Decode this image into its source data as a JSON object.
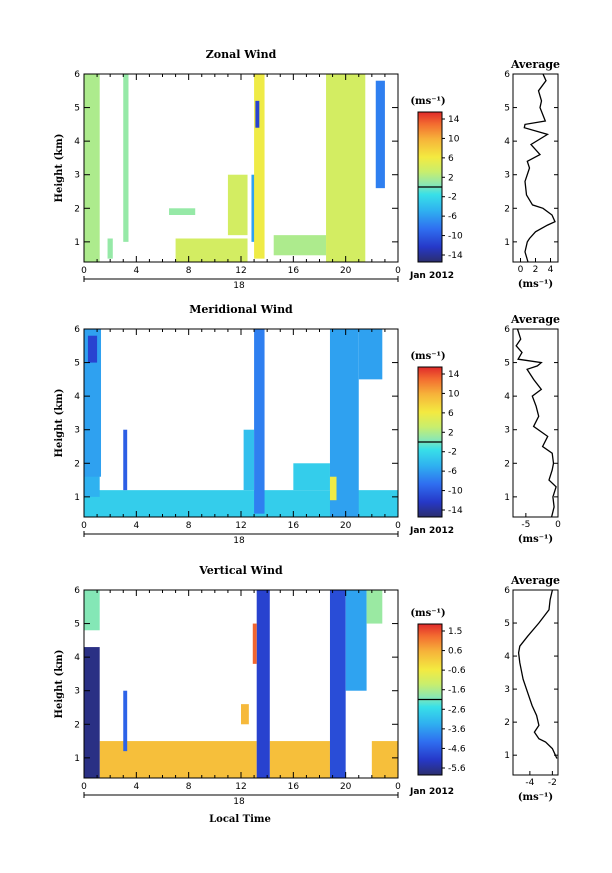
{
  "figure": {
    "time_label": "Local Time",
    "date_label": "Jan 2012",
    "day_label": "18",
    "height_label": "Height (km)"
  },
  "chart_data": [
    {
      "type": "heatmap",
      "title": "Zonal Wind",
      "xlabel": "",
      "ylabel": "Height (km)",
      "x_ticks": [
        "0",
        "4",
        "8",
        "12",
        "16",
        "20",
        "0"
      ],
      "y_ticks": [
        "1",
        "2",
        "3",
        "4",
        "5",
        "6"
      ],
      "xlim": [
        0,
        24
      ],
      "ylim": [
        0.4,
        6
      ],
      "colorbar": {
        "unit": "(ms⁻¹)",
        "ticks": [
          "14",
          "10",
          "6",
          "2",
          "-2",
          "-6",
          "-10",
          "-14"
        ],
        "range": [
          -16,
          16
        ]
      },
      "bands": [
        {
          "x": [
            0,
            1.2
          ],
          "y": [
            0.4,
            6
          ],
          "value": 2
        },
        {
          "x": [
            3.0,
            3.4
          ],
          "y": [
            1.0,
            6
          ],
          "value": 1
        },
        {
          "x": [
            13.0,
            13.8
          ],
          "y": [
            0.5,
            6
          ],
          "value": 6
        },
        {
          "x": [
            13.1,
            13.4
          ],
          "y": [
            4.4,
            5.2
          ],
          "value": -12
        },
        {
          "x": [
            18.5,
            21.5
          ],
          "y": [
            0.4,
            6
          ],
          "value": 4
        },
        {
          "x": [
            22.3,
            23.0
          ],
          "y": [
            2.6,
            5.8
          ],
          "value": -8
        }
      ],
      "patches": [
        {
          "x": [
            7,
            12.5
          ],
          "y": [
            0.4,
            1.1
          ],
          "value": 4
        },
        {
          "x": [
            12.8,
            13.3
          ],
          "y": [
            1.0,
            3.0
          ],
          "value": -6
        },
        {
          "x": [
            14.5,
            18.5
          ],
          "y": [
            0.6,
            1.2
          ],
          "value": 2
        },
        {
          "x": [
            11,
            12.5
          ],
          "y": [
            1.2,
            3.0
          ],
          "value": 4
        },
        {
          "x": [
            6.5,
            8.5
          ],
          "y": [
            1.8,
            2.0
          ],
          "value": 1
        },
        {
          "x": [
            1.8,
            2.2
          ],
          "y": [
            0.5,
            1.1
          ],
          "value": 1
        }
      ],
      "profile": {
        "title": "Average",
        "xlabel": "(ms⁻¹)",
        "x_ticks": [
          "0",
          "2",
          "4"
        ],
        "xlim": [
          -1,
          5
        ],
        "x": [
          1.0,
          0.6,
          0.9,
          1.2,
          2.0,
          3.6,
          4.6,
          4.2,
          3.0,
          1.6,
          0.8,
          0.6,
          1.2,
          0.9,
          2.6,
          1.4,
          3.6,
          0.5,
          0.6,
          3.3,
          2.6,
          2.8,
          2.4,
          3.4,
          3.0
        ],
        "y": [
          0.4,
          0.7,
          1.0,
          1.1,
          1.3,
          1.5,
          1.6,
          1.8,
          2.0,
          2.1,
          2.4,
          2.8,
          3.2,
          3.4,
          3.6,
          3.9,
          4.2,
          4.4,
          4.5,
          4.6,
          5.0,
          5.2,
          5.5,
          5.8,
          6.0
        ]
      }
    },
    {
      "type": "heatmap",
      "title": "Meridional Wind",
      "xlabel": "",
      "ylabel": "Height (km)",
      "x_ticks": [
        "0",
        "4",
        "8",
        "12",
        "16",
        "20",
        "0"
      ],
      "y_ticks": [
        "1",
        "2",
        "3",
        "4",
        "5",
        "6"
      ],
      "xlim": [
        0,
        24
      ],
      "ylim": [
        0.4,
        6
      ],
      "colorbar": {
        "unit": "(ms⁻¹)",
        "ticks": [
          "14",
          "10",
          "6",
          "2",
          "-2",
          "-6",
          "-10",
          "-14"
        ],
        "range": [
          -16,
          16
        ]
      },
      "bands": [
        {
          "x": [
            0,
            1.3
          ],
          "y": [
            1.6,
            6
          ],
          "value": -6
        },
        {
          "x": [
            0.3,
            1.0
          ],
          "y": [
            5.0,
            5.8
          ],
          "value": -12
        },
        {
          "x": [
            3.0,
            3.3
          ],
          "y": [
            1.2,
            3.0
          ],
          "value": -10
        },
        {
          "x": [
            13.0,
            13.8
          ],
          "y": [
            0.5,
            6
          ],
          "value": -8
        },
        {
          "x": [
            18.8,
            21.0
          ],
          "y": [
            0.4,
            6
          ],
          "value": -6
        },
        {
          "x": [
            18.8,
            19.3
          ],
          "y": [
            0.9,
            1.6
          ],
          "value": 6
        }
      ],
      "patches": [
        {
          "x": [
            0,
            24
          ],
          "y": [
            0.4,
            1.2
          ],
          "value": -3
        },
        {
          "x": [
            12.2,
            13.0
          ],
          "y": [
            1.2,
            3.0
          ],
          "value": -4
        },
        {
          "x": [
            21.0,
            22.8
          ],
          "y": [
            4.5,
            6
          ],
          "value": -6
        },
        {
          "x": [
            0,
            1.2
          ],
          "y": [
            1.0,
            3.0
          ],
          "value": -5
        },
        {
          "x": [
            16.0,
            18.8
          ],
          "y": [
            1.2,
            2.0
          ],
          "value": -3
        }
      ],
      "profile": {
        "title": "Average",
        "xlabel": "(ms⁻¹)",
        "x_ticks": [
          "-5",
          "0"
        ],
        "xlim": [
          -7,
          0
        ],
        "x": [
          -1.0,
          -0.6,
          -0.8,
          -0.3,
          -1.4,
          -0.9,
          -0.7,
          -0.9,
          -2.4,
          -1.6,
          -3.8,
          -3.0,
          -3.4,
          -4.0,
          -2.6,
          -3.8,
          -4.8,
          -3.2,
          -2.6,
          -6.2,
          -5.6,
          -6.5,
          -5.8,
          -6.3
        ],
        "y": [
          0.4,
          0.7,
          1.0,
          1.3,
          1.5,
          1.8,
          2.0,
          2.3,
          2.5,
          2.8,
          3.1,
          3.4,
          3.7,
          4.0,
          4.2,
          4.5,
          4.8,
          4.9,
          5.0,
          5.1,
          5.3,
          5.5,
          5.7,
          6.0
        ]
      }
    },
    {
      "type": "heatmap",
      "title": "Vertical Wind",
      "xlabel": "Local Time",
      "ylabel": "Height (km)",
      "x_ticks": [
        "0",
        "4",
        "8",
        "12",
        "16",
        "20",
        "0"
      ],
      "y_ticks": [
        "1",
        "2",
        "3",
        "4",
        "5",
        "6"
      ],
      "xlim": [
        0,
        24
      ],
      "ylim": [
        0.4,
        6
      ],
      "colorbar": {
        "unit": "(ms⁻¹)",
        "ticks": [
          "1.5",
          "0.6",
          "-0.6",
          "-1.6",
          "-2.6",
          "-3.6",
          "-4.6",
          "-5.6"
        ],
        "range": [
          -6.2,
          2.0
        ]
      },
      "bands": [
        {
          "x": [
            0,
            1.2
          ],
          "y": [
            0.4,
            4.3
          ],
          "value": -6
        },
        {
          "x": [
            0,
            1.2
          ],
          "y": [
            4.8,
            6
          ],
          "value": -2
        },
        {
          "x": [
            3.0,
            3.3
          ],
          "y": [
            1.2,
            3.0
          ],
          "value": -4.6
        },
        {
          "x": [
            13.2,
            14.2
          ],
          "y": [
            0.4,
            6
          ],
          "value": -5.2
        },
        {
          "x": [
            18.8,
            20.0
          ],
          "y": [
            0.4,
            6
          ],
          "value": -5.0
        },
        {
          "x": [
            20.0,
            21.6
          ],
          "y": [
            3.0,
            6
          ],
          "value": -3.6
        },
        {
          "x": [
            21.6,
            22.8
          ],
          "y": [
            5.0,
            6
          ],
          "value": -1.8
        },
        {
          "x": [
            12.9,
            13.2
          ],
          "y": [
            3.8,
            5.0
          ],
          "value": 1.4
        }
      ],
      "patches": [
        {
          "x": [
            1.2,
            13.2
          ],
          "y": [
            0.4,
            1.5
          ],
          "value": 0.3
        },
        {
          "x": [
            14.2,
            18.8
          ],
          "y": [
            0.4,
            1.5
          ],
          "value": 0.3
        },
        {
          "x": [
            22.0,
            24
          ],
          "y": [
            0.4,
            1.5
          ],
          "value": 0.3
        },
        {
          "x": [
            12.0,
            12.6
          ],
          "y": [
            2.0,
            2.6
          ],
          "value": 0.4
        }
      ],
      "profile": {
        "title": "Average",
        "xlabel": "(ms⁻¹)",
        "x_ticks": [
          "-4",
          "-2"
        ],
        "xlim": [
          -5.5,
          -1.5
        ],
        "x": [
          -1.6,
          -2.0,
          -2.6,
          -3.2,
          -3.6,
          -3.2,
          -3.4,
          -3.8,
          -4.2,
          -4.6,
          -4.9,
          -5.0,
          -4.9,
          -4.2,
          -3.2,
          -2.3,
          -2.2,
          -2.0
        ],
        "y": [
          0.9,
          1.2,
          1.4,
          1.5,
          1.7,
          1.9,
          2.2,
          2.5,
          2.9,
          3.3,
          3.8,
          4.1,
          4.3,
          4.6,
          5.0,
          5.4,
          5.7,
          6.0
        ]
      }
    }
  ]
}
